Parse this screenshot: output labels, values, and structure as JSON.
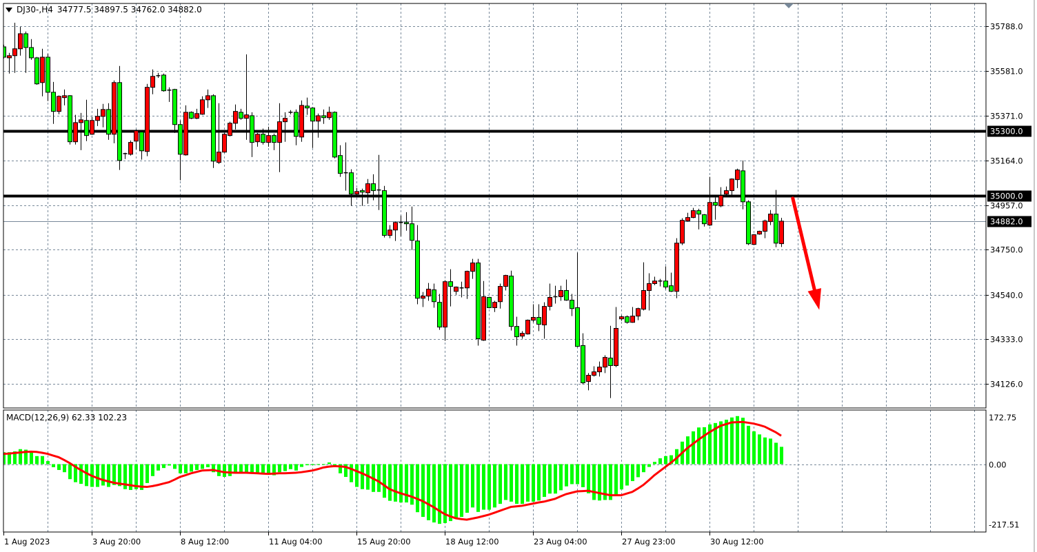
{
  "header": {
    "symbol": "DJ30-,H4",
    "ohlc_text": "34777.5 34897.5 34762.0 34882.0",
    "menu_icon": "triangle-down-icon"
  },
  "macd_panel": {
    "label": "MACD(12,26,9) 62.33 102.23"
  },
  "chart_data": [
    {
      "type": "candlestick",
      "symbol": "DJ30-",
      "timeframe": "H4",
      "bull_color": "#FF0000",
      "bear_color": "#00FF00",
      "ylim": [
        34020,
        35900
      ],
      "y_ticks": [
        35788.0,
        35581.0,
        35371.0,
        35164.0,
        34957.0,
        34750.0,
        34540.0,
        34333.0,
        34126.0
      ],
      "grid": true,
      "time_labels": [
        {
          "index": 0,
          "text": "1 Aug 2023"
        },
        {
          "index": 16,
          "text": "3 Aug 20:00"
        },
        {
          "index": 32,
          "text": "8 Aug 12:00"
        },
        {
          "index": 48,
          "text": "11 Aug 04:00"
        },
        {
          "index": 64,
          "text": "15 Aug 20:00"
        },
        {
          "index": 80,
          "text": "18 Aug 12:00"
        },
        {
          "index": 96,
          "text": "23 Aug 04:00"
        },
        {
          "index": 112,
          "text": "27 Aug 23:00"
        },
        {
          "index": 128,
          "text": "30 Aug 12:00"
        }
      ],
      "horizontal_lines": [
        {
          "price": 35300.0,
          "label": "35300.0",
          "color": "#000000",
          "style": "thick"
        },
        {
          "price": 35000.0,
          "label": "35000.0",
          "color": "#000000",
          "style": "thick"
        },
        {
          "price": 34882.0,
          "label": "34882.0",
          "color": "#778899",
          "style": "bid"
        }
      ],
      "arrow": {
        "from": {
          "index": 143.1,
          "price": 34988
        },
        "to": {
          "index": 147.9,
          "price": 34470
        },
        "color": "#FF0000"
      },
      "candles": [
        [
          35692,
          35702,
          35638,
          35644
        ],
        [
          35641,
          35664,
          35568,
          35651
        ],
        [
          35651,
          35804,
          35571,
          35683
        ],
        [
          35683,
          35785,
          35651,
          35753
        ],
        [
          35753,
          35763,
          35571,
          35689
        ],
        [
          35689,
          35728,
          35632,
          35641
        ],
        [
          35641,
          35645,
          35516,
          35520
        ],
        [
          35526,
          35683,
          35462,
          35644
        ],
        [
          35644,
          35660,
          35440,
          35481
        ],
        [
          35481,
          35529,
          35334,
          35392
        ],
        [
          35392,
          35466,
          35379,
          35462
        ],
        [
          35456,
          35494,
          35420,
          35465
        ],
        [
          35465,
          35468,
          35238,
          35251
        ],
        [
          35251,
          35376,
          35238,
          35340
        ],
        [
          35340,
          35385,
          35212,
          35353
        ],
        [
          35350,
          35446,
          35254,
          35280
        ],
        [
          35286,
          35366,
          35283,
          35350
        ],
        [
          35350,
          35404,
          35324,
          35369
        ],
        [
          35369,
          35427,
          35318,
          35401
        ],
        [
          35401,
          35430,
          35260,
          35286
        ],
        [
          35286,
          35536,
          35244,
          35526
        ],
        [
          35526,
          35603,
          35120,
          35164
        ],
        [
          35196,
          35200,
          35171,
          35196
        ],
        [
          35193,
          35257,
          35187,
          35248
        ],
        [
          35254,
          35308,
          35216,
          35302
        ],
        [
          35296,
          35300,
          35168,
          35209
        ],
        [
          35206,
          35520,
          35184,
          35504
        ],
        [
          35504,
          35587,
          35472,
          35555
        ],
        [
          35558,
          35571,
          35548,
          35558
        ],
        [
          35561,
          35568,
          35484,
          35488
        ],
        [
          35491,
          35504,
          35436,
          35491
        ],
        [
          35494,
          35497,
          35292,
          35331
        ],
        [
          35331,
          35350,
          35072,
          35193
        ],
        [
          35190,
          35420,
          35187,
          35388
        ],
        [
          35388,
          35392,
          35356,
          35360
        ],
        [
          35360,
          35404,
          35356,
          35382
        ],
        [
          35379,
          35462,
          35376,
          35446
        ],
        [
          35446,
          35494,
          35408,
          35465
        ],
        [
          35465,
          35472,
          35129,
          35161
        ],
        [
          35155,
          35430,
          35148,
          35203
        ],
        [
          35203,
          35292,
          35200,
          35286
        ],
        [
          35280,
          35344,
          35276,
          35337
        ],
        [
          35337,
          35424,
          35308,
          35392
        ],
        [
          35388,
          35404,
          35353,
          35360
        ],
        [
          35360,
          35657,
          35260,
          35376
        ],
        [
          35372,
          35388,
          35180,
          35248
        ],
        [
          35251,
          35292,
          35228,
          35286
        ],
        [
          35286,
          35312,
          35238,
          35248
        ],
        [
          35248,
          35321,
          35228,
          35280
        ],
        [
          35280,
          35289,
          35212,
          35248
        ],
        [
          35248,
          35430,
          35110,
          35344
        ],
        [
          35344,
          35388,
          35251,
          35360
        ],
        [
          35388,
          35398,
          35378,
          35388
        ],
        [
          35388,
          35401,
          35235,
          35276
        ],
        [
          35273,
          35443,
          35251,
          35420
        ],
        [
          35417,
          35456,
          35376,
          35408
        ],
        [
          35408,
          35411,
          35222,
          35347
        ],
        [
          35347,
          35382,
          35270,
          35372
        ],
        [
          35372,
          35401,
          35334,
          35363
        ],
        [
          35363,
          35414,
          35353,
          35388
        ],
        [
          35388,
          35392,
          35174,
          35180
        ],
        [
          35187,
          35235,
          35088,
          35104
        ],
        [
          35107,
          35248,
          35024,
          35107
        ],
        [
          35107,
          35123,
          34953,
          35008
        ],
        [
          35008,
          35036,
          34992,
          35020
        ],
        [
          35024,
          35033,
          34953,
          35017
        ],
        [
          35014,
          35078,
          34963,
          35056
        ],
        [
          35056,
          35100,
          34979,
          35024
        ],
        [
          35027,
          35190,
          34934,
          35027
        ],
        [
          35024,
          35046,
          34806,
          34816
        ],
        [
          34816,
          34864,
          34803,
          34841
        ],
        [
          34841,
          34880,
          34790,
          34876
        ],
        [
          34876,
          34908,
          34812,
          34876
        ],
        [
          34876,
          34924,
          34838,
          34870
        ],
        [
          34870,
          34950,
          34748,
          34793
        ],
        [
          34790,
          34864,
          34496,
          34524
        ],
        [
          34524,
          34553,
          34483,
          34534
        ],
        [
          34534,
          34595,
          34512,
          34566
        ],
        [
          34563,
          34592,
          34480,
          34508
        ],
        [
          34505,
          34544,
          34377,
          34390
        ],
        [
          34390,
          34608,
          34326,
          34601
        ],
        [
          34601,
          34659,
          34486,
          34579
        ],
        [
          34556,
          34579,
          34540,
          34576
        ],
        [
          34572,
          34601,
          34528,
          34572
        ],
        [
          34572,
          34652,
          34521,
          34649
        ],
        [
          34649,
          34707,
          34614,
          34688
        ],
        [
          34688,
          34707,
          34304,
          34336
        ],
        [
          34329,
          34604,
          34326,
          34531
        ],
        [
          34528,
          34531,
          34477,
          34480
        ],
        [
          34480,
          34512,
          34460,
          34505
        ],
        [
          34508,
          34592,
          34476,
          34579
        ],
        [
          34579,
          34633,
          34560,
          34630
        ],
        [
          34627,
          34652,
          34374,
          34393
        ],
        [
          34393,
          34438,
          34304,
          34345
        ],
        [
          34348,
          34371,
          34336,
          34361
        ],
        [
          34358,
          34425,
          34355,
          34422
        ],
        [
          34422,
          34496,
          34412,
          34435
        ],
        [
          34435,
          34496,
          34371,
          34403
        ],
        [
          34400,
          34505,
          34336,
          34486
        ],
        [
          34486,
          34592,
          34467,
          34528
        ],
        [
          34531,
          34582,
          34499,
          34531
        ],
        [
          34531,
          34582,
          34512,
          34560
        ],
        [
          34560,
          34611,
          34512,
          34515
        ],
        [
          34515,
          34544,
          34441,
          34476
        ],
        [
          34480,
          34736,
          34297,
          34300
        ],
        [
          34304,
          34361,
          34124,
          34131
        ],
        [
          34137,
          34176,
          34096,
          34166
        ],
        [
          34166,
          34208,
          34160,
          34182
        ],
        [
          34182,
          34230,
          34160,
          34204
        ],
        [
          34204,
          34259,
          34176,
          34249
        ],
        [
          34246,
          34396,
          34060,
          34211
        ],
        [
          34211,
          34483,
          34204,
          34384
        ],
        [
          34428,
          34444,
          34419,
          34438
        ],
        [
          34438,
          34444,
          34406,
          34412
        ],
        [
          34412,
          34483,
          34410,
          34441
        ],
        [
          34441,
          34480,
          34422,
          34476
        ],
        [
          34473,
          34691,
          34467,
          34560
        ],
        [
          34560,
          34640,
          34467,
          34592
        ],
        [
          34592,
          34624,
          34585,
          34604
        ],
        [
          34604,
          34614,
          34579,
          34604
        ],
        [
          34604,
          34672,
          34566,
          34576
        ],
        [
          34582,
          34643,
          34553,
          34556
        ],
        [
          34556,
          34803,
          34524,
          34780
        ],
        [
          34780,
          34896,
          34771,
          34886
        ],
        [
          34883,
          34921,
          34880,
          34899
        ],
        [
          34899,
          34944,
          34896,
          34931
        ],
        [
          34931,
          34940,
          34844,
          34915
        ],
        [
          34912,
          34915,
          34857,
          34870
        ],
        [
          34864,
          35088,
          34860,
          34969
        ],
        [
          34969,
          34992,
          34889,
          34956
        ],
        [
          34953,
          35040,
          34947,
          35001
        ],
        [
          35008,
          35043,
          35004,
          35024
        ],
        [
          35024,
          35081,
          35001,
          35078
        ],
        [
          35075,
          35126,
          35036,
          35120
        ],
        [
          35116,
          35164,
          34937,
          34972
        ],
        [
          34972,
          34979,
          34771,
          34777
        ],
        [
          34774,
          34822,
          34771,
          34819
        ],
        [
          34822,
          34838,
          34819,
          34835
        ],
        [
          34835,
          34889,
          34803,
          34883
        ],
        [
          34880,
          34934,
          34864,
          34915
        ],
        [
          34915,
          35027,
          34761,
          34780
        ],
        [
          34777.5,
          34897.5,
          34762.0,
          34882.0
        ]
      ]
    },
    {
      "type": "bar+line",
      "indicator": "MACD(12,26,9)",
      "ylim": [
        -217.51,
        172.75
      ],
      "y_ticks": [
        172.75,
        0.0,
        -217.51
      ],
      "histogram_color": "#00FF00",
      "signal_color": "#FF0000",
      "macd": [
        43,
        43,
        46,
        54,
        52,
        42,
        29,
        29,
        11,
        -11,
        -21,
        -29,
        -54,
        -65,
        -71,
        -79,
        -82,
        -82,
        -77,
        -82,
        -75,
        -79,
        -90,
        -93,
        -90,
        -93,
        -68,
        -43,
        -23,
        -14,
        -5,
        -17,
        -33,
        -33,
        -27,
        -21,
        -17,
        -11,
        -29,
        -43,
        -46,
        -43,
        -33,
        -31,
        -31,
        -29,
        -33,
        -33,
        -33,
        -40,
        -29,
        -25,
        -18,
        -23,
        -10,
        -4,
        -3,
        0,
        0,
        6,
        -4,
        -33,
        -46,
        -65,
        -82,
        -90,
        -92,
        -100,
        -100,
        -121,
        -132,
        -135,
        -138,
        -138,
        -146,
        -173,
        -190,
        -202,
        -210,
        -215,
        -212,
        -205,
        -197,
        -190,
        -175,
        -156,
        -172,
        -164,
        -164,
        -156,
        -143,
        -129,
        -135,
        -143,
        -143,
        -135,
        -135,
        -131,
        -118,
        -106,
        -106,
        -94,
        -80,
        -72,
        -72,
        -83,
        -105,
        -129,
        -131,
        -129,
        -129,
        -110,
        -91,
        -77,
        -61,
        -47,
        -29,
        -10,
        8,
        21,
        29,
        32,
        54,
        81,
        100,
        118,
        132,
        133,
        143,
        148,
        154,
        160,
        168,
        173,
        167,
        138,
        118,
        107,
        96,
        92,
        77,
        62.33
      ],
      "signal": [
        37,
        38,
        40,
        42,
        44,
        45,
        44,
        41,
        37,
        31,
        25,
        15,
        4,
        -9,
        -21,
        -32,
        -42,
        -50,
        -57,
        -62,
        -67,
        -70,
        -73,
        -76,
        -79,
        -81,
        -82,
        -79,
        -75,
        -70,
        -65,
        -56,
        -46,
        -40,
        -33,
        -28,
        -23,
        -22,
        -21,
        -25,
        -29,
        -30,
        -31,
        -31,
        -31,
        -32,
        -33,
        -34,
        -35,
        -34,
        -33,
        -33,
        -32,
        -31,
        -29,
        -26,
        -23,
        -18,
        -12,
        -9,
        -7,
        -8,
        -10,
        -17,
        -25,
        -33,
        -42,
        -52,
        -62,
        -76,
        -90,
        -98,
        -105,
        -111,
        -117,
        -125,
        -133,
        -144,
        -155,
        -168,
        -180,
        -188,
        -195,
        -198,
        -200,
        -196,
        -192,
        -187,
        -182,
        -175,
        -168,
        -161,
        -154,
        -152,
        -150,
        -146,
        -142,
        -138,
        -135,
        -130,
        -125,
        -116,
        -108,
        -103,
        -98,
        -97,
        -96,
        -100,
        -104,
        -108,
        -112,
        -112,
        -112,
        -106,
        -100,
        -88,
        -75,
        -58,
        -40,
        -25,
        -10,
        5,
        21,
        40,
        58,
        73,
        88,
        102,
        115,
        127,
        138,
        144,
        150,
        151,
        152,
        149,
        146,
        141,
        135,
        125,
        115,
        102.23
      ]
    }
  ]
}
